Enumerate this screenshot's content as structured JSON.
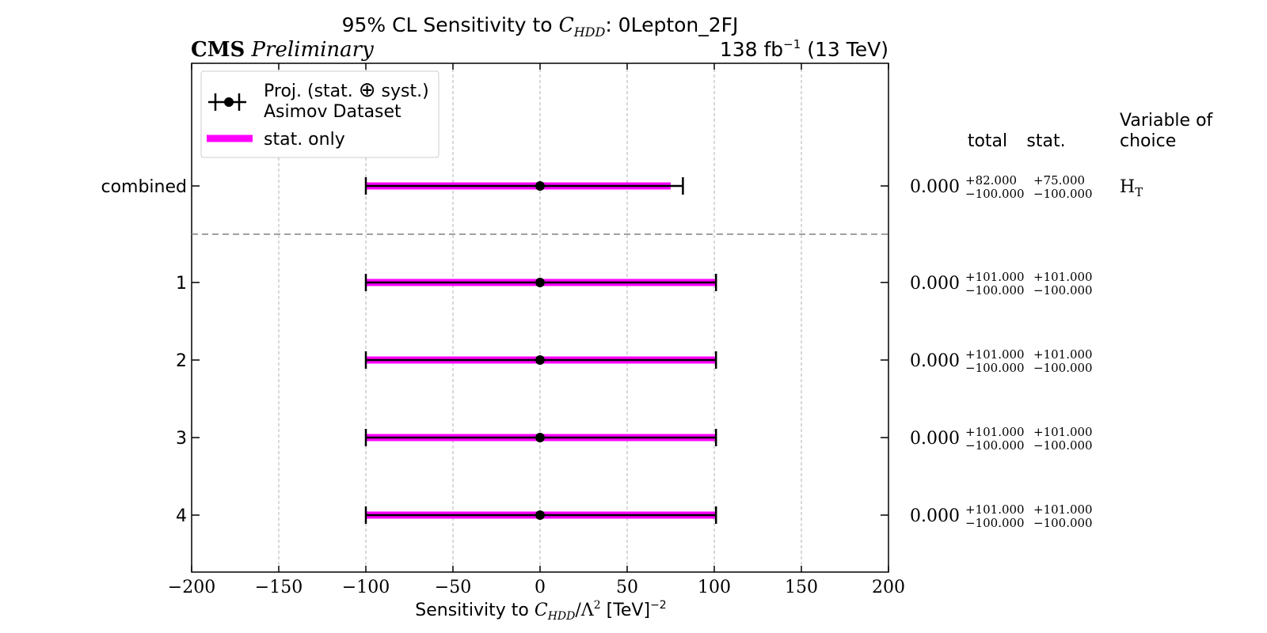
{
  "chart_data": {
    "type": "scatter",
    "title_prefix": "95% CL Sensitivity to ",
    "title_symbol": "C",
    "title_symbol_sub": "HDD",
    "title_suffix": ": 0Lepton_2FJ",
    "experiment": "CMS",
    "status": "Preliminary",
    "lumi_prefix": "138 fb",
    "lumi_exp": "−1",
    "lumi_suffix": " (13 TeV)",
    "xlabel_prefix": "Sensitivity to ",
    "xlabel_symbol": "C",
    "xlabel_symbol_sub": "HDD",
    "xlabel_middle": "/Λ",
    "xlabel_middle_exp": "2",
    "xlabel_unit": " [TeV]",
    "xlabel_unit_exp": "−2",
    "xlim": [
      -200,
      200
    ],
    "xticks": [
      -200,
      -150,
      -100,
      -50,
      0,
      50,
      100,
      150,
      200
    ],
    "grid": true,
    "legend": {
      "position": "top-left",
      "entries": [
        {
          "label_line1_a": "Proj. (stat. ",
          "label_symbol": "⊕",
          "label_line1_b": " syst.)",
          "label_line2": "Asimov Dataset",
          "color": "#000000"
        },
        {
          "label": "stat. only",
          "color": "#ff00ff"
        }
      ]
    },
    "table_headers": {
      "total": "total",
      "stat": "stat.",
      "variable_line1": "Variable of",
      "variable_line2": "choice"
    },
    "rows": [
      {
        "label": "combined",
        "value": 0,
        "value_text": "0.000",
        "total_up": 82,
        "total_down": -100,
        "stat_up": 75,
        "stat_down": -100,
        "total_up_text": "+82.000",
        "total_down_text": "−100.000",
        "stat_up_text": "+75.000",
        "stat_down_text": "−100.000",
        "variable": "H",
        "variable_sub": "T"
      },
      {
        "label": "1",
        "value": 0,
        "value_text": "0.000",
        "total_up": 101,
        "total_down": -100,
        "stat_up": 101,
        "stat_down": -100,
        "total_up_text": "+101.000",
        "total_down_text": "−100.000",
        "stat_up_text": "+101.000",
        "stat_down_text": "−100.000",
        "variable": "",
        "variable_sub": ""
      },
      {
        "label": "2",
        "value": 0,
        "value_text": "0.000",
        "total_up": 101,
        "total_down": -100,
        "stat_up": 101,
        "stat_down": -100,
        "total_up_text": "+101.000",
        "total_down_text": "−100.000",
        "stat_up_text": "+101.000",
        "stat_down_text": "−100.000",
        "variable": "",
        "variable_sub": ""
      },
      {
        "label": "3",
        "value": 0,
        "value_text": "0.000",
        "total_up": 101,
        "total_down": -100,
        "stat_up": 101,
        "stat_down": -100,
        "total_up_text": "+101.000",
        "total_down_text": "−100.000",
        "stat_up_text": "+101.000",
        "stat_down_text": "−100.000",
        "variable": "",
        "variable_sub": ""
      },
      {
        "label": "4",
        "value": 0,
        "value_text": "0.000",
        "total_up": 101,
        "total_down": -100,
        "stat_up": 101,
        "stat_down": -100,
        "total_up_text": "+101.000",
        "total_down_text": "−100.000",
        "stat_up_text": "+101.000",
        "stat_down_text": "−100.000",
        "variable": "",
        "variable_sub": ""
      }
    ],
    "colors": {
      "total": "#000000",
      "stat": "#ff00ff",
      "grid": "#b0b0b0",
      "separator": "#808080"
    }
  }
}
